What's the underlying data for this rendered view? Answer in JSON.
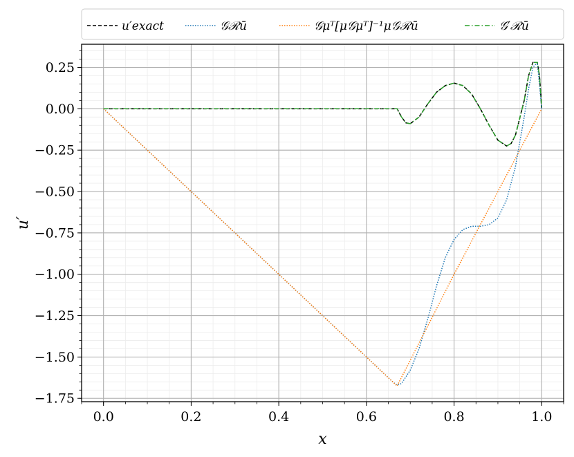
{
  "chart_data": {
    "type": "line",
    "xlabel": "x",
    "ylabel": "u′",
    "xlim": [
      -0.05,
      1.05
    ],
    "ylim": [
      -1.77,
      0.39
    ],
    "xticks": [
      0.0,
      0.2,
      0.4,
      0.6,
      0.8,
      1.0
    ],
    "xtick_labels": [
      "0.0",
      "0.2",
      "0.4",
      "0.6",
      "0.8",
      "1.0"
    ],
    "yticks": [
      0.25,
      0.0,
      -0.25,
      -0.5,
      -0.75,
      -1.0,
      -1.25,
      -1.5,
      -1.75
    ],
    "ytick_labels": [
      "0.25",
      "0.00",
      "−0.25",
      "−0.50",
      "−0.75",
      "−1.00",
      "−1.25",
      "−1.50",
      "−1.75"
    ],
    "grid": "major and minor",
    "legend_position": "top",
    "series": [
      {
        "name": "u′exact",
        "color": "#000000",
        "style": "dashed",
        "x": [
          0.0,
          0.1,
          0.2,
          0.3,
          0.4,
          0.5,
          0.6,
          0.66,
          0.67,
          0.68,
          0.69,
          0.7,
          0.72,
          0.74,
          0.76,
          0.78,
          0.8,
          0.82,
          0.84,
          0.86,
          0.88,
          0.9,
          0.92,
          0.93,
          0.94,
          0.96,
          0.97,
          0.98,
          0.99,
          0.995,
          1.0
        ],
        "y": [
          0.0,
          0.0,
          0.0,
          0.0,
          0.0,
          0.0,
          0.0,
          0.0,
          0.0,
          -0.05,
          -0.085,
          -0.09,
          -0.05,
          0.03,
          0.1,
          0.14,
          0.155,
          0.14,
          0.09,
          0.0,
          -0.1,
          -0.19,
          -0.225,
          -0.21,
          -0.16,
          0.05,
          0.2,
          0.28,
          0.28,
          0.2,
          0.0
        ]
      },
      {
        "name": "𝒢ℛū",
        "color": "#1f77b4",
        "style": "dotted",
        "x": [
          0.0,
          0.1,
          0.2,
          0.3,
          0.4,
          0.5,
          0.6,
          0.66,
          0.67,
          0.68,
          0.7,
          0.72,
          0.74,
          0.76,
          0.78,
          0.8,
          0.82,
          0.84,
          0.86,
          0.88,
          0.9,
          0.92,
          0.94,
          0.96,
          0.97,
          0.98,
          0.99,
          1.0
        ],
        "y": [
          0.0,
          -0.25,
          -0.5,
          -0.75,
          -1.0,
          -1.25,
          -1.5,
          -1.65,
          -1.67,
          -1.66,
          -1.58,
          -1.45,
          -1.27,
          -1.07,
          -0.9,
          -0.79,
          -0.73,
          -0.71,
          -0.71,
          -0.7,
          -0.66,
          -0.55,
          -0.35,
          -0.05,
          0.12,
          0.25,
          0.28,
          0.0
        ]
      },
      {
        "name": "𝒢μᵀ[μ𝒢μᵀ]⁻¹μ𝒢ℛū",
        "color": "#ff7f0e",
        "style": "dotted",
        "x": [
          0.0,
          0.2,
          0.4,
          0.6,
          0.67,
          0.8,
          1.0
        ],
        "y": [
          0.0,
          -0.5,
          -1.0,
          -1.5,
          -1.675,
          -1.0,
          0.0
        ]
      },
      {
        "name": "𝒢′ℛū",
        "color": "#2ca02c",
        "style": "dashdot",
        "x": [
          0.0,
          0.1,
          0.2,
          0.3,
          0.4,
          0.5,
          0.6,
          0.66,
          0.67,
          0.68,
          0.69,
          0.7,
          0.72,
          0.74,
          0.76,
          0.78,
          0.8,
          0.82,
          0.84,
          0.86,
          0.88,
          0.9,
          0.92,
          0.93,
          0.94,
          0.96,
          0.97,
          0.98,
          0.99,
          0.995,
          1.0
        ],
        "y": [
          0.0,
          0.0,
          0.0,
          0.0,
          0.0,
          0.0,
          0.0,
          0.0,
          0.0,
          -0.05,
          -0.085,
          -0.09,
          -0.05,
          0.03,
          0.1,
          0.14,
          0.155,
          0.14,
          0.09,
          0.0,
          -0.1,
          -0.19,
          -0.225,
          -0.21,
          -0.16,
          0.05,
          0.2,
          0.28,
          0.28,
          0.2,
          0.0
        ]
      }
    ]
  }
}
